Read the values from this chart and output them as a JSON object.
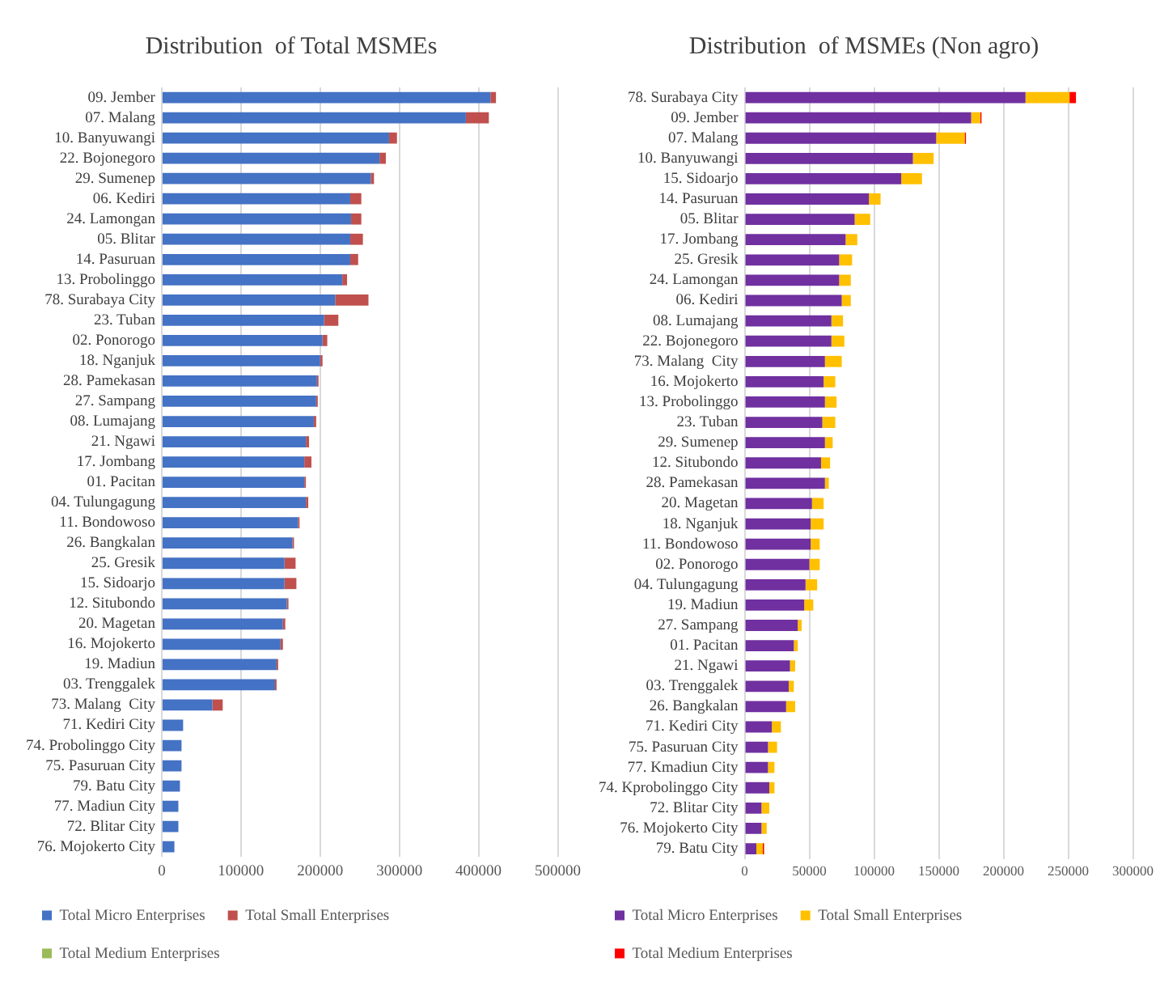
{
  "chart_data": [
    {
      "type": "bar",
      "orientation": "horizontal",
      "stacked": true,
      "title": "Distribution  of Total MSMEs",
      "categories": [
        "09. Jember",
        "07. Malang",
        "10. Banyuwangi",
        "22. Bojonegoro",
        "29. Sumenep",
        "06. Kediri",
        "24. Lamongan",
        "05. Blitar",
        "14. Pasuruan",
        "13. Probolinggo",
        "78. Surabaya City",
        "23. Tuban",
        "02. Ponorogo",
        "18. Nganjuk",
        "28. Pamekasan",
        "27. Sampang",
        "08. Lumajang",
        "21. Ngawi",
        "17. Jombang",
        "01. Pacitan",
        "04. Tulungagung",
        "11. Bondowoso",
        "26. Bangkalan",
        "25. Gresik",
        "15. Sidoarjo",
        "12. Situbondo",
        "20. Magetan",
        "16. Mojokerto",
        "19. Madiun",
        "03. Trenggalek",
        "73. Malang  City",
        "71. Kediri City",
        "74. Probolinggo City",
        "75. Pasuruan City",
        "79. Batu City",
        "77. Madiun City",
        "72. Blitar City",
        "76. Mojokerto City"
      ],
      "series": [
        {
          "name": "Total Micro Enterprises",
          "color": "#4472c4",
          "values": [
            415000,
            384000,
            287000,
            275000,
            264000,
            238000,
            239000,
            238000,
            238000,
            228000,
            219000,
            205000,
            203000,
            200000,
            196000,
            195000,
            192000,
            182000,
            180000,
            180000,
            182000,
            172000,
            165000,
            155000,
            155000,
            158000,
            153000,
            150000,
            145000,
            143000,
            64000,
            27000,
            25000,
            25000,
            23000,
            21000,
            21000,
            16000
          ]
        },
        {
          "name": "Total Small Enterprises",
          "color": "#c0504d",
          "values": [
            7000,
            29000,
            10000,
            8000,
            4000,
            14000,
            13000,
            16000,
            10000,
            6000,
            42000,
            18000,
            6000,
            3000,
            2000,
            2000,
            3000,
            4000,
            9000,
            2000,
            3000,
            2000,
            2000,
            14000,
            15000,
            2000,
            3000,
            3000,
            2000,
            2000,
            13000,
            0,
            0,
            0,
            0,
            0,
            0,
            0
          ]
        },
        {
          "name": "Total Medium Enterprises",
          "color": "#9bbb59",
          "values": [
            0,
            0,
            0,
            0,
            0,
            0,
            0,
            0,
            0,
            0,
            0,
            0,
            0,
            0,
            0,
            0,
            0,
            0,
            0,
            0,
            0,
            0,
            0,
            0,
            0,
            0,
            0,
            0,
            0,
            0,
            0,
            0,
            0,
            0,
            0,
            0,
            0,
            0
          ]
        }
      ],
      "xlim": [
        0,
        500000
      ],
      "xticks": [
        0,
        100000,
        200000,
        300000,
        400000,
        500000
      ],
      "grid": "x",
      "legend": "bottom"
    },
    {
      "type": "bar",
      "orientation": "horizontal",
      "stacked": true,
      "title": "Distribution  of MSMEs (Non agro)",
      "categories": [
        "78. Surabaya City",
        "09. Jember",
        "07. Malang",
        "10. Banyuwangi",
        "15. Sidoarjo",
        "14. Pasuruan",
        "05. Blitar",
        "17. Jombang",
        "25. Gresik",
        "24. Lamongan",
        "06. Kediri",
        "08. Lumajang",
        "22. Bojonegoro",
        "73. Malang  City",
        "16. Mojokerto",
        "13. Probolinggo",
        "23. Tuban",
        "29. Sumenep",
        "12. Situbondo",
        "28. Pamekasan",
        "20. Magetan",
        "18. Nganjuk",
        "11. Bondowoso",
        "02. Ponorogo",
        "04. Tulungagung",
        "19. Madiun",
        "27. Sampang",
        "01. Pacitan",
        "21. Ngawi",
        "03. Trenggalek",
        "26. Bangkalan",
        "71. Kediri City",
        "75. Pasuruan City",
        "77. Kmadiun City",
        "74. Kprobolinggo City",
        "72. Blitar City",
        "76. Mojokerto City",
        "79. Batu City"
      ],
      "series": [
        {
          "name": "Total Micro Enterprises",
          "color": "#7030a0",
          "values": [
            217000,
            175000,
            148000,
            130000,
            121000,
            96000,
            85000,
            78000,
            73000,
            73000,
            75000,
            67000,
            67000,
            62000,
            61000,
            62000,
            60000,
            62000,
            59000,
            62000,
            52000,
            51000,
            51000,
            50000,
            47000,
            46000,
            41000,
            38000,
            35000,
            34000,
            32000,
            21000,
            18000,
            18000,
            19000,
            13000,
            13000,
            9000
          ]
        },
        {
          "name": "Total Small Enterprises",
          "color": "#ffc000",
          "values": [
            34000,
            7000,
            22000,
            16000,
            16000,
            9000,
            12000,
            9000,
            10000,
            9000,
            7000,
            9000,
            10000,
            13000,
            9000,
            9000,
            10000,
            6000,
            7000,
            3000,
            9000,
            10000,
            7000,
            8000,
            9000,
            7000,
            3000,
            3000,
            4000,
            4000,
            7000,
            7000,
            7000,
            5000,
            4000,
            6000,
            4000,
            5000
          ]
        },
        {
          "name": "Total Medium Enterprises",
          "color": "#ff0000",
          "values": [
            5000,
            1000,
            1000,
            0,
            0,
            0,
            0,
            0,
            0,
            0,
            0,
            0,
            0,
            0,
            0,
            0,
            0,
            0,
            0,
            0,
            0,
            0,
            0,
            0,
            0,
            0,
            0,
            0,
            0,
            0,
            0,
            0,
            0,
            0,
            0,
            0,
            0,
            1000
          ]
        }
      ],
      "xlim": [
        0,
        300000
      ],
      "xticks": [
        0,
        50000,
        100000,
        150000,
        200000,
        250000,
        300000
      ],
      "grid": "x",
      "legend": "bottom"
    }
  ]
}
